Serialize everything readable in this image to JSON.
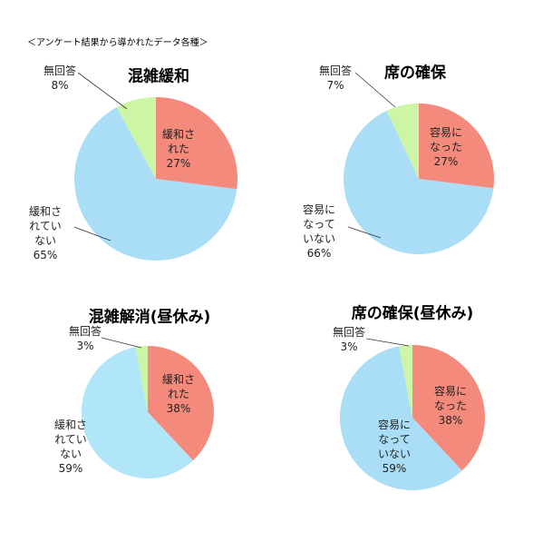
{
  "caption": "＜アンケート結果から導かれたデータ各種＞",
  "chart_data": [
    {
      "type": "pie",
      "title": "混雑緩和",
      "categories": [
        "緩和された",
        "緩和されていない",
        "無回答"
      ],
      "values": [
        27,
        65,
        8
      ],
      "value_labels": [
        "27%",
        "65%",
        "8%"
      ],
      "colors": [
        "#f48a7c",
        "#a9def6",
        "#ccf5a6"
      ]
    },
    {
      "type": "pie",
      "title": "席の確保",
      "categories": [
        "容易になった",
        "容易になっていない",
        "無回答"
      ],
      "values": [
        27,
        66,
        7
      ],
      "value_labels": [
        "27%",
        "66%",
        "7%"
      ],
      "colors": [
        "#f48a7c",
        "#a9def6",
        "#ccf5a6"
      ]
    },
    {
      "type": "pie",
      "title": "混雑解消(昼休み)",
      "categories": [
        "緩和された",
        "緩和されていない",
        "無回答"
      ],
      "values": [
        38,
        59,
        3
      ],
      "value_labels": [
        "38%",
        "59%",
        "3%"
      ],
      "colors": [
        "#f48a7c",
        "#b0e6f8",
        "#ccf5a6"
      ]
    },
    {
      "type": "pie",
      "title": "席の確保(昼休み)",
      "categories": [
        "容易になった",
        "容易になっていない",
        "無回答"
      ],
      "values": [
        38,
        59,
        3
      ],
      "value_labels": [
        "38%",
        "59%",
        "3%"
      ],
      "colors": [
        "#f48a7c",
        "#a9def6",
        "#ccf5a6"
      ]
    }
  ]
}
